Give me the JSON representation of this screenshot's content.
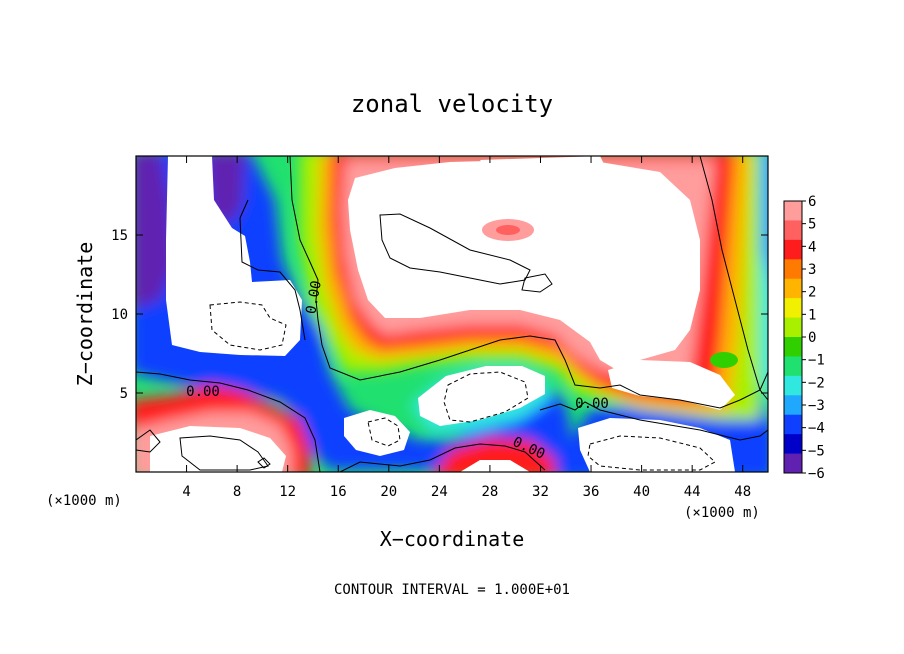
{
  "chart_data": {
    "type": "heatmap",
    "title": "zonal velocity",
    "xlabel": "X−coordinate",
    "ylabel": "Z−coordinate",
    "x_unit": "(×1000 m)",
    "x_unit_right": "(×1000 m)",
    "xlim": [
      0,
      50
    ],
    "ylim": [
      0,
      20
    ],
    "xticks": [
      4,
      8,
      12,
      16,
      20,
      24,
      28,
      32,
      36,
      40,
      44,
      48
    ],
    "yticks": [
      5,
      10,
      15
    ],
    "footer": "CONTOUR INTERVAL = 1.000E+01",
    "colorbar": {
      "levels": [
        6,
        5,
        4,
        3,
        2,
        1,
        0,
        -1,
        -2,
        -3,
        -4,
        -5,
        -6
      ],
      "labels": [
        "6",
        "5",
        "4",
        "3",
        "2",
        "1",
        "0",
        "−1",
        "−2",
        "−3",
        "−4",
        "−5",
        "−6"
      ],
      "colors": [
        "#ff9c9c",
        "#ff6060",
        "#ff1c1c",
        "#ff7a00",
        "#ffb400",
        "#f0f000",
        "#a8f000",
        "#30d000",
        "#20e070",
        "#30e8e0",
        "#20a8ff",
        "#1040ff",
        "#0000c8",
        "#6020b0"
      ]
    },
    "contour_labels": [
      "0.00",
      "0.00",
      "0.00",
      "0.00"
    ],
    "grid": false,
    "legend": "right-colorbar"
  }
}
